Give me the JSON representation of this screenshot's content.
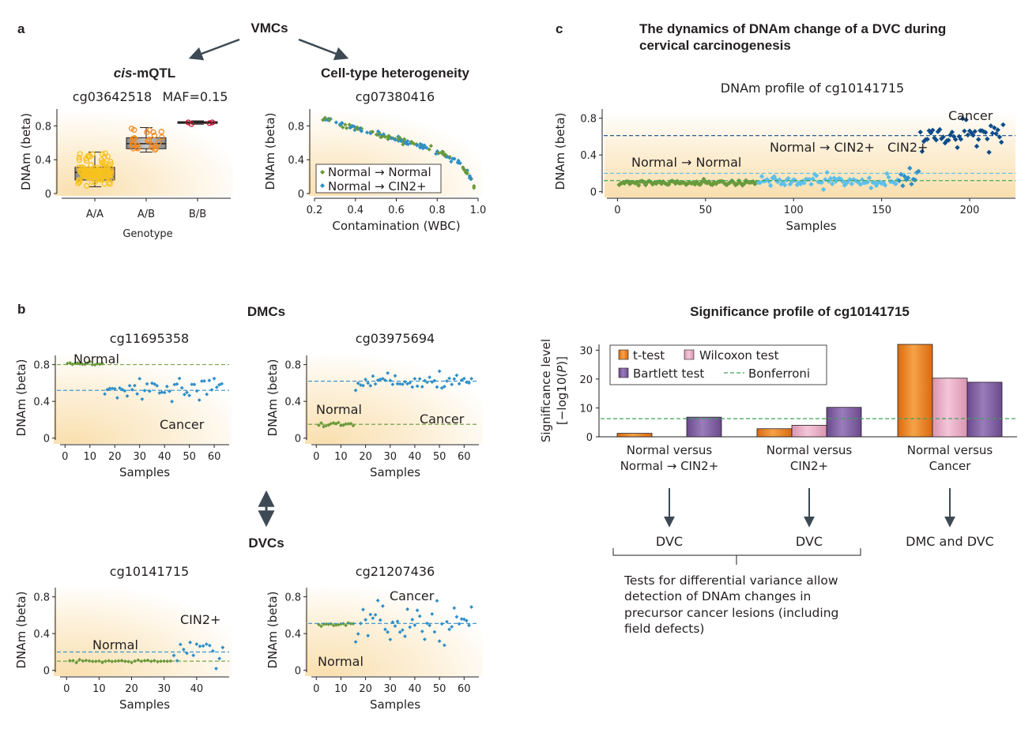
{
  "panel_labels": {
    "a": "a",
    "b": "b",
    "c": "c"
  },
  "headings": {
    "vmcs": "VMCs",
    "cis_prefix": "cis",
    "cis_suffix": "-mQTL",
    "cell_type": "Cell-type heterogeneity",
    "dmcs": "DMCs",
    "dvcs": "DVCs",
    "c_title_line1": "The dynamics of DNAm change of a DVC during",
    "c_title_line2": "cervical carcinogenesis",
    "sig_title": "Significance profile of cg10141715"
  },
  "colors": {
    "normal_green": "#6a9a3a",
    "cin_blue": "#2e8fc9",
    "light_blue": "#5cc0ea",
    "dark_blue": "#0f4c8a",
    "orange": "#f08a24",
    "yellow": "#f7c21c",
    "red": "#c4102e",
    "bg_cream": "#fbe8c6"
  },
  "chart_data": [
    {
      "id": "a1",
      "type": "box",
      "title": "cg03642518",
      "annotation": "MAF=0.15",
      "ylabel": "DNAm (beta)",
      "xlabel": "Genotype",
      "categories": [
        "A/A",
        "A/B",
        "B/B"
      ],
      "ylim": [
        0,
        1
      ],
      "yticks": [
        "0",
        "0.4",
        "0.8"
      ],
      "boxes": [
        {
          "category": "A/A",
          "min": 0.08,
          "q1": 0.16,
          "median": 0.25,
          "q3": 0.31,
          "max": 0.49,
          "n": 120
        },
        {
          "category": "A/B",
          "min": 0.49,
          "q1": 0.53,
          "median": 0.59,
          "q3": 0.66,
          "max": 0.78,
          "n": 30
        },
        {
          "category": "B/B",
          "min": 0.82,
          "q1": 0.83,
          "median": 0.84,
          "q3": 0.85,
          "max": 0.86,
          "n": 4
        }
      ]
    },
    {
      "id": "a2",
      "type": "scatter",
      "title": "cg07380416",
      "ylabel": "DNAm (beta)",
      "xlabel": "Contamination (WBC)",
      "xlim": [
        0.2,
        1.0
      ],
      "ylim": [
        0,
        1
      ],
      "xticks": [
        "0.2",
        "0.4",
        "0.6",
        "0.8",
        "1.0"
      ],
      "yticks": [
        "0",
        "0.4",
        "0.8"
      ],
      "legend": [
        "Normal → Normal",
        "Normal → CIN2+"
      ],
      "trend": [
        [
          0.24,
          0.9
        ],
        [
          0.3,
          0.84
        ],
        [
          0.4,
          0.77
        ],
        [
          0.5,
          0.71
        ],
        [
          0.6,
          0.65
        ],
        [
          0.7,
          0.58
        ],
        [
          0.8,
          0.5
        ],
        [
          0.87,
          0.42
        ],
        [
          0.92,
          0.33
        ],
        [
          0.96,
          0.2
        ],
        [
          0.98,
          0.08
        ]
      ]
    },
    {
      "id": "b1",
      "type": "scatter",
      "title": "cg11695358",
      "ylabel": "DNAm (beta)",
      "xlabel": "Samples",
      "xlim": [
        -2,
        66
      ],
      "ylim": [
        -0.02,
        0.9
      ],
      "xticks": [
        "0",
        "10",
        "20",
        "30",
        "40",
        "50",
        "60"
      ],
      "yticks": [
        "0",
        "0.4",
        "0.8"
      ],
      "labels": [
        "Normal",
        "Cancer"
      ],
      "series": [
        {
          "name": "Normal",
          "n": 15,
          "mean": 0.81,
          "sd": 0.012
        },
        {
          "name": "Cancer",
          "n": 48,
          "mean": 0.53,
          "sd": 0.09
        }
      ],
      "hlines": [
        0.8,
        0.52
      ]
    },
    {
      "id": "b2",
      "type": "scatter",
      "title": "cg03975694",
      "ylabel": "DNAm (beta)",
      "xlabel": "Samples",
      "xlim": [
        -2,
        66
      ],
      "ylim": [
        -0.02,
        0.9
      ],
      "xticks": [
        "0",
        "10",
        "20",
        "30",
        "40",
        "50",
        "60"
      ],
      "yticks": [
        "0",
        "0.4",
        "0.8"
      ],
      "labels": [
        "Normal",
        "Cancer"
      ],
      "series": [
        {
          "name": "Normal",
          "n": 15,
          "mean": 0.15,
          "sd": 0.025
        },
        {
          "name": "Cancer",
          "n": 48,
          "mean": 0.63,
          "sd": 0.07
        }
      ],
      "hlines": [
        0.15,
        0.62
      ]
    },
    {
      "id": "b3",
      "type": "scatter",
      "title": "cg10141715",
      "ylabel": "DNAm (beta)",
      "xlabel": "Samples",
      "xlim": [
        -2,
        50
      ],
      "ylim": [
        -0.02,
        0.9
      ],
      "xticks": [
        "0",
        "10",
        "20",
        "30",
        "40"
      ],
      "yticks": [
        "0",
        "0.4",
        "0.8"
      ],
      "labels": [
        "Normal",
        "CIN2+"
      ],
      "series": [
        {
          "name": "Normal",
          "n": 32,
          "mean": 0.1,
          "sd": 0.012
        },
        {
          "name": "CIN2+",
          "n": 16,
          "mean": 0.2,
          "sd": 0.1
        }
      ],
      "hlines": [
        0.1,
        0.2
      ]
    },
    {
      "id": "b4",
      "type": "scatter",
      "title": "cg21207436",
      "ylabel": "DNAm (beta)",
      "xlabel": "Samples",
      "xlim": [
        -2,
        66
      ],
      "ylim": [
        -0.02,
        0.9
      ],
      "xticks": [
        "0",
        "10",
        "20",
        "30",
        "40",
        "50",
        "60"
      ],
      "yticks": [
        "0",
        "0.4",
        "0.8"
      ],
      "labels": [
        "Cancer",
        "Normal"
      ],
      "series": [
        {
          "name": "Normal",
          "n": 15,
          "mean": 0.5,
          "sd": 0.015
        },
        {
          "name": "Cancer",
          "n": 48,
          "mean": 0.51,
          "sd": 0.14
        }
      ],
      "hlines": [
        0.51
      ]
    },
    {
      "id": "c1",
      "type": "scatter",
      "title": "DNAm profile of cg10141715",
      "ylabel": "DNAm (beta)",
      "xlabel": "Samples",
      "xlim": [
        -6,
        226
      ],
      "ylim": [
        -0.02,
        0.9
      ],
      "xticks": [
        "0",
        "50",
        "100",
        "150",
        "200"
      ],
      "yticks": [
        "0",
        "0.4",
        "0.8"
      ],
      "labels": [
        "Normal → Normal",
        "Normal → CIN2+",
        "CIN2+",
        "Cancer"
      ],
      "series": [
        {
          "name": "Normal → Normal",
          "start": 1,
          "n": 79,
          "mean": 0.1,
          "sd": 0.02
        },
        {
          "name": "Normal → CIN2+",
          "start": 80,
          "n": 80,
          "mean": 0.11,
          "sd": 0.05
        },
        {
          "name": "CIN2+",
          "start": 160,
          "n": 12,
          "mean": 0.16,
          "sd": 0.08
        },
        {
          "name": "Cancer",
          "start": 172,
          "n": 48,
          "mean": 0.62,
          "sd": 0.1
        }
      ],
      "hlines": [
        0.61,
        0.2,
        0.12
      ]
    },
    {
      "id": "c2",
      "type": "bar",
      "ylabel_line1": "Significance level",
      "ylabel_line2_pre": "[−log10(",
      "ylabel_line2_p": "P",
      "ylabel_line2_post": ")]",
      "ylim": [
        0,
        32
      ],
      "yticks": [
        "0",
        "10",
        "20",
        "30"
      ],
      "categories": [
        [
          "Normal versus",
          "Normal → CIN2+"
        ],
        [
          "Normal versus",
          "CIN2+"
        ],
        [
          "Normal versus",
          "Cancer"
        ]
      ],
      "series": [
        {
          "name": "t-test",
          "values": [
            1.2,
            2.8,
            32
          ]
        },
        {
          "name": "Wilcoxon test",
          "values": [
            0,
            4.0,
            20.3
          ]
        },
        {
          "name": "Bartlett test",
          "values": [
            6.8,
            10.2,
            18.9
          ]
        }
      ],
      "threshold": {
        "name": "Bonferroni",
        "value": 6.3
      }
    }
  ],
  "outcomes": {
    "dvc1": "DVC",
    "dvc2": "DVC",
    "dmc_dvc": "DMC and DVC",
    "note_lines": [
      "Tests for differential variance allow",
      "detection of DNAm changes in",
      "precursor cancer lesions (including",
      "field defects)"
    ]
  }
}
